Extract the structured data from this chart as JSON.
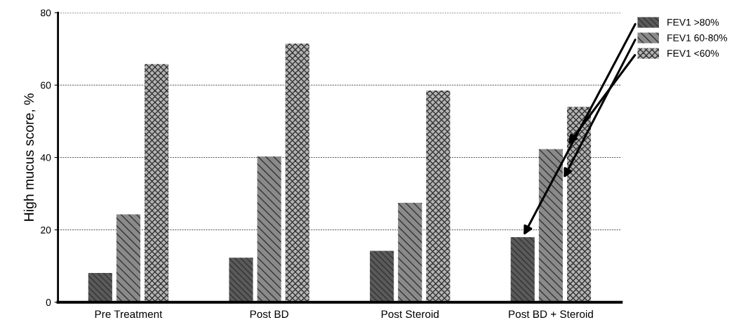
{
  "chart_data": {
    "type": "bar",
    "ylabel": "High mucus score, %",
    "categories": [
      "Pre Treatment",
      "Post BD",
      "Post Steroid",
      "Post BD + Steroid"
    ],
    "series": [
      {
        "name": "FEV1 >80%",
        "color": "#5a5a5a",
        "values": [
          8.1,
          12.3,
          14.2,
          18.0
        ]
      },
      {
        "name": "FEV1 60-80%",
        "color": "#8a8a8a",
        "values": [
          24.3,
          40.3,
          27.5,
          42.3
        ]
      },
      {
        "name": "FEV1 <60%",
        "color": "#b4b4b4",
        "values": [
          65.8,
          71.5,
          58.5,
          54.0
        ]
      }
    ],
    "ylim": [
      0,
      80
    ],
    "yticks": [
      0,
      20,
      40,
      60,
      80
    ],
    "grid": "y",
    "legend": "top right"
  }
}
